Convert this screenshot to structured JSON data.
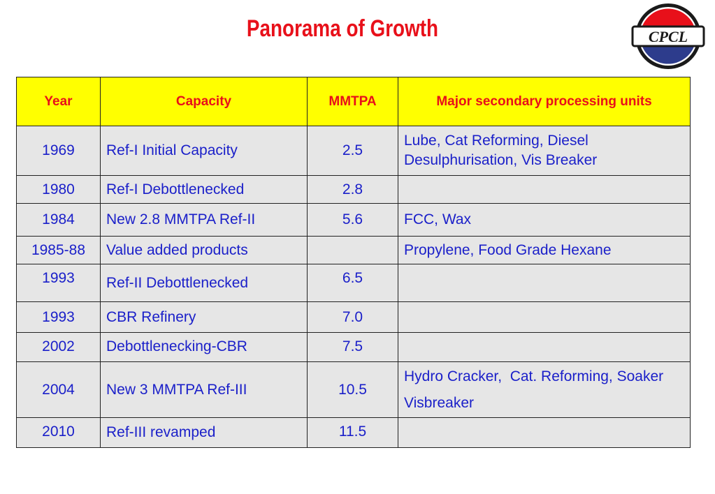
{
  "title": "Panorama of Growth",
  "logo": {
    "text": "CPCL",
    "colors": {
      "ring": "#1a1a1a",
      "top": "#e8101a",
      "bottom": "#2d3c8c"
    }
  },
  "table": {
    "headers": [
      "Year",
      "Capacity",
      "MMTPA",
      "Major secondary processing units"
    ],
    "rows": [
      {
        "year": "1969",
        "capacity": "Ref-I Initial Capacity",
        "mmtpa": "2.5",
        "units": "Lube, Cat Reforming, Diesel Desulphurisation, Vis Breaker"
      },
      {
        "year": "1980",
        "capacity": "Ref-I Debottlenecked",
        "mmtpa": "2.8",
        "units": ""
      },
      {
        "year": "1984",
        "capacity": "New 2.8 MMTPA Ref-II",
        "mmtpa": "5.6",
        "units": "FCC, Wax"
      },
      {
        "year": "1985-88",
        "capacity": "Value added products",
        "mmtpa": "",
        "units": "Propylene, Food Grade Hexane"
      },
      {
        "year": "1993",
        "capacity": "Ref-II Debottlenecked",
        "mmtpa": "6.5",
        "units": ""
      },
      {
        "year": "1993",
        "capacity": "CBR Refinery",
        "mmtpa": "7.0",
        "units": ""
      },
      {
        "year": "2002",
        "capacity": "Debottlenecking-CBR",
        "mmtpa": "7.5",
        "units": ""
      },
      {
        "year": "2004",
        "capacity": "New 3 MMTPA Ref-III",
        "mmtpa": "10.5",
        "units": "Hydro Cracker,  Cat. Reforming, Soaker Visbreaker"
      },
      {
        "year": "2010",
        "capacity": "Ref-III revamped",
        "mmtpa": "11.5",
        "units": ""
      }
    ],
    "colors": {
      "header_bg": "#ffff00",
      "header_text": "#e8101a",
      "cell_bg": "#e6e6e6",
      "cell_text": "#1a1fc9"
    }
  }
}
